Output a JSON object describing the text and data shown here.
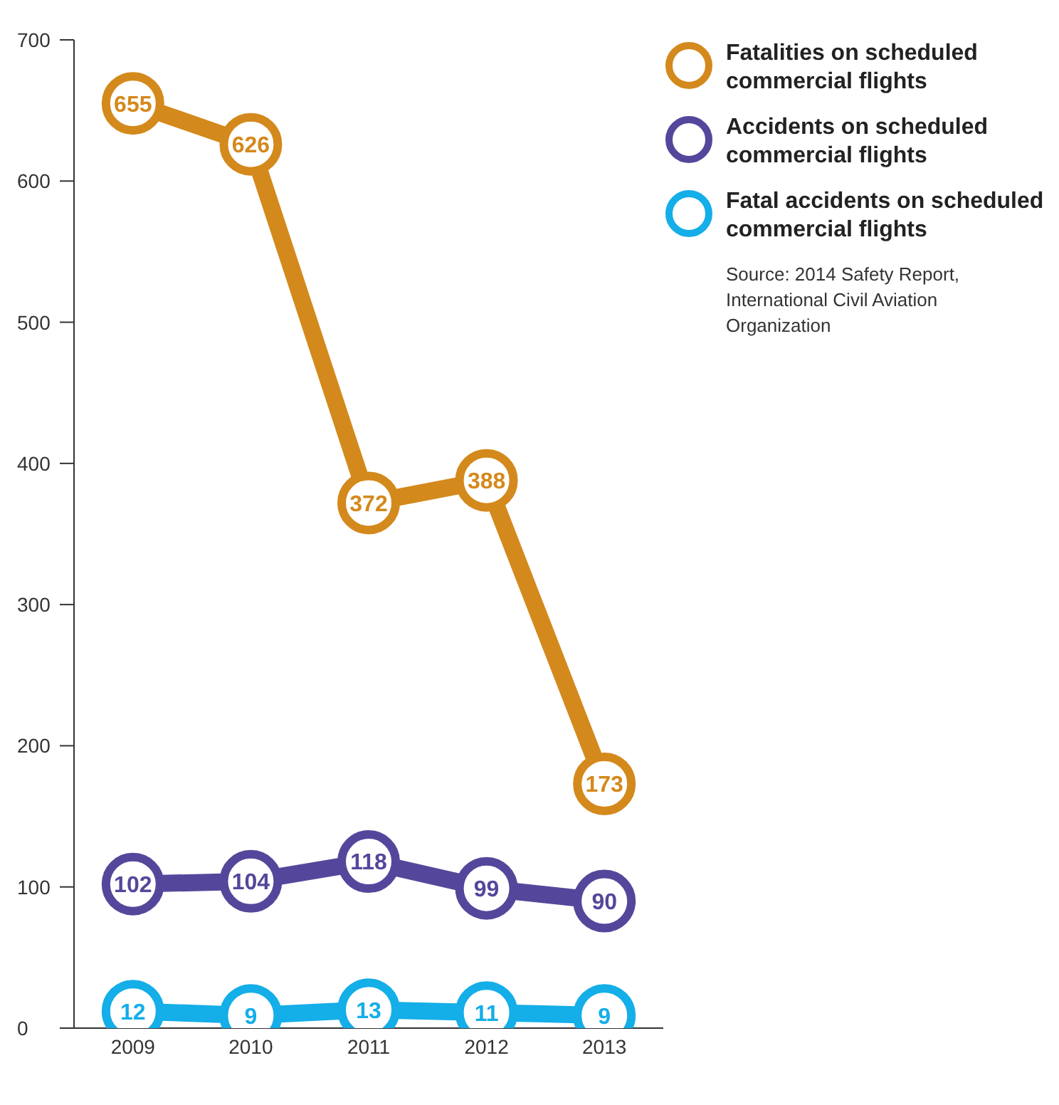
{
  "chart_data": {
    "type": "line",
    "categories": [
      "2009",
      "2010",
      "2011",
      "2012",
      "2013"
    ],
    "series": [
      {
        "name": "Fatalities on scheduled commercial flights",
        "color": "#d4891c",
        "values": [
          655,
          626,
          372,
          388,
          173
        ]
      },
      {
        "name": "Accidents on scheduled commercial flights",
        "color": "#54479b",
        "values": [
          102,
          104,
          118,
          99,
          90
        ]
      },
      {
        "name": "Fatal accidents on scheduled commercial flights",
        "color": "#14aee8",
        "values": [
          12,
          9,
          13,
          11,
          9
        ]
      }
    ],
    "ylim": [
      0,
      700
    ],
    "yticks": [
      0,
      100,
      200,
      300,
      400,
      500,
      600,
      700
    ],
    "grid": false,
    "legend": "top right",
    "marker": "circle",
    "line_style": "solid",
    "data_labels": true,
    "annotations": [
      "Source: 2014 Safety Report, International Civil Aviation Organization"
    ]
  }
}
